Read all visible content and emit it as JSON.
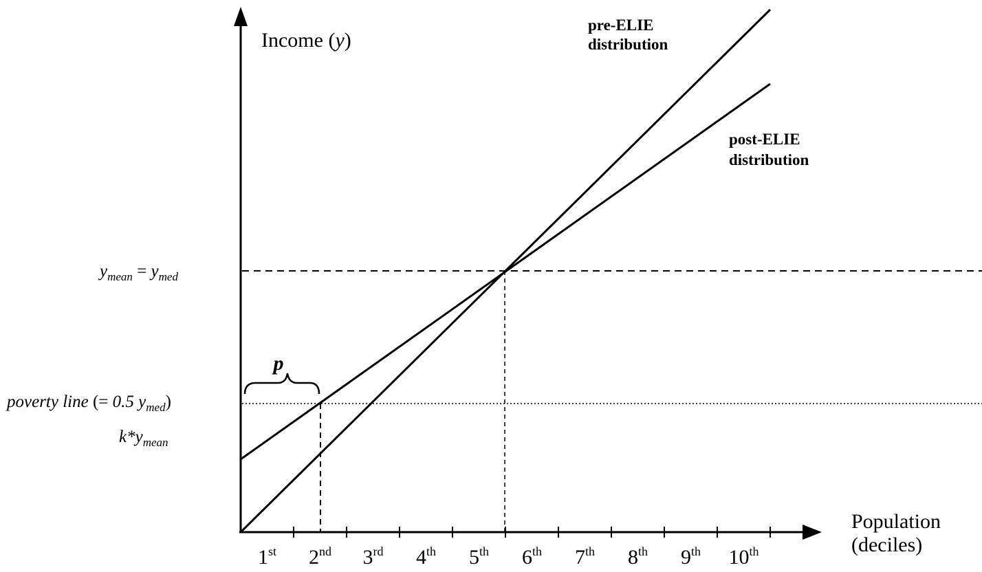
{
  "axes": {
    "y_label_pre": "Income (",
    "y_label_var": "y",
    "y_label_post": ")",
    "x_label_line1": "Population",
    "x_label_line2": "(deciles)"
  },
  "deciles": [
    {
      "num": "1",
      "suffix": "st"
    },
    {
      "num": "2",
      "suffix": "nd"
    },
    {
      "num": "3",
      "suffix": "rd"
    },
    {
      "num": "4",
      "suffix": "th"
    },
    {
      "num": "5",
      "suffix": "th"
    },
    {
      "num": "6",
      "suffix": "th"
    },
    {
      "num": "7",
      "suffix": "th"
    },
    {
      "num": "8",
      "suffix": "th"
    },
    {
      "num": "9",
      "suffix": "th"
    },
    {
      "num": "10",
      "suffix": "th"
    }
  ],
  "lines": {
    "pre_line1": "pre-ELIE",
    "pre_line2": "distribution",
    "post_line1": "post-ELIE",
    "post_line2": "distribution"
  },
  "levels": {
    "mean_y": "y",
    "mean_sub": "mean",
    "equals": " = ",
    "med_y": "y",
    "med_sub": "med",
    "poverty_text": "poverty line",
    "poverty_paren_open": " (= ",
    "poverty_coef": "0.5 y",
    "poverty_sub": "med",
    "poverty_paren_close": ")",
    "k_text": "k*y",
    "k_sub": "mean"
  },
  "brace_label": "p"
}
